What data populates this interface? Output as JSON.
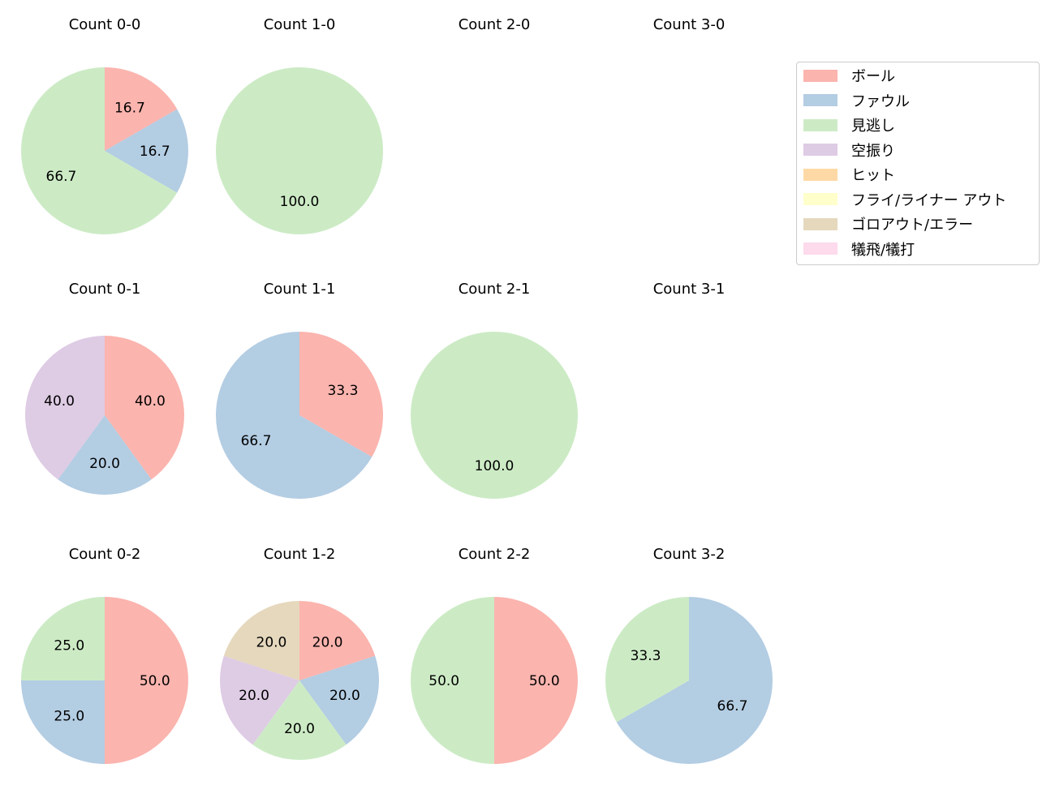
{
  "chart_data": {
    "type": "pie",
    "categories": [
      "ボール",
      "ファウル",
      "見逃し",
      "空振り",
      "ヒット",
      "フライ/ライナー アウト",
      "ゴロアウト/エラー",
      "犠飛/犠打"
    ],
    "colors": [
      "#fbb4ae",
      "#b3cde3",
      "#ccebc5",
      "#decbe4",
      "#fed9a6",
      "#ffffcc",
      "#e5d8bd",
      "#fddaec"
    ],
    "start_angle": 90,
    "direction": "clockwise",
    "legend_position": "right",
    "charts": [
      {
        "title": "Count 0-0",
        "values": [
          16.7,
          16.7,
          66.7,
          0,
          0,
          0,
          0,
          0
        ]
      },
      {
        "title": "Count 1-0",
        "values": [
          0,
          0,
          100.0,
          0,
          0,
          0,
          0,
          0
        ]
      },
      {
        "title": "Count 2-0",
        "values": []
      },
      {
        "title": "Count 3-0",
        "values": []
      },
      {
        "title": "Count 0-1",
        "values": [
          40.0,
          20.0,
          0,
          40.0,
          0,
          0,
          0,
          0
        ]
      },
      {
        "title": "Count 1-1",
        "values": [
          33.3,
          66.7,
          0,
          0,
          0,
          0,
          0,
          0
        ]
      },
      {
        "title": "Count 2-1",
        "values": [
          0,
          0,
          100.0,
          0,
          0,
          0,
          0,
          0
        ]
      },
      {
        "title": "Count 3-1",
        "values": []
      },
      {
        "title": "Count 0-2",
        "values": [
          50.0,
          25.0,
          25.0,
          0,
          0,
          0,
          0,
          0
        ]
      },
      {
        "title": "Count 1-2",
        "values": [
          20.0,
          20.0,
          20.0,
          20.0,
          0,
          0,
          20.0,
          0
        ]
      },
      {
        "title": "Count 2-2",
        "values": [
          50.0,
          0,
          50.0,
          0,
          0,
          0,
          0,
          0
        ]
      },
      {
        "title": "Count 3-2",
        "values": [
          0,
          66.7,
          33.3,
          0,
          0,
          0,
          0,
          0
        ]
      }
    ]
  }
}
